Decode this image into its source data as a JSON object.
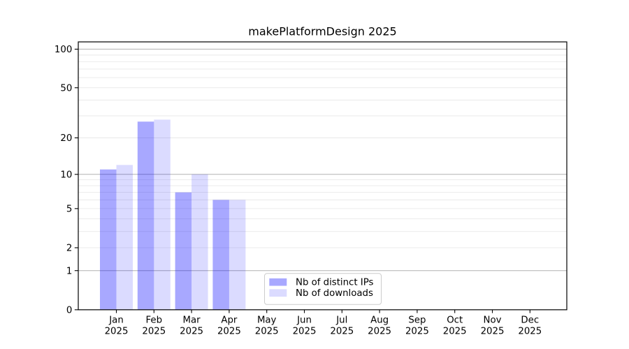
{
  "chart_data": {
    "type": "bar",
    "title": "makePlatformDesign 2025",
    "categories": [
      "Jan",
      "Feb",
      "Mar",
      "Apr",
      "May",
      "Jun",
      "Jul",
      "Aug",
      "Sep",
      "Oct",
      "Nov",
      "Dec"
    ],
    "category_year": "2025",
    "series": [
      {
        "name": "Nb of distinct IPs",
        "color": "rgba(0,0,255,0.34)",
        "color_hex": "#a9a9f9",
        "values": [
          11,
          27,
          7,
          6,
          0,
          0,
          0,
          0,
          0,
          0,
          0,
          0
        ]
      },
      {
        "name": "Nb of downloads",
        "color": "rgba(0,0,255,0.14)",
        "color_hex": "#dcdcfc",
        "values": [
          12,
          28,
          10,
          6,
          0,
          0,
          0,
          0,
          0,
          0,
          0,
          0
        ]
      }
    ],
    "yscale": "log1p",
    "ylim": [
      0,
      113
    ],
    "ytick_labels": [
      "0",
      "1",
      "2",
      "5",
      "10",
      "20",
      "50",
      "100"
    ],
    "ytick_values": [
      0,
      1,
      2,
      5,
      10,
      20,
      50,
      100
    ],
    "major_gridlines": [
      1,
      10,
      100
    ],
    "minor_gridlines": [
      2,
      3,
      4,
      5,
      6,
      7,
      8,
      9,
      20,
      30,
      40,
      50,
      60,
      70,
      80,
      90
    ],
    "legend": {
      "entries": [
        "Nb of distinct IPs",
        "Nb of downloads"
      ],
      "location": "lower center"
    },
    "colors": {
      "background": "#ffffff",
      "spine": "#000000",
      "major_grid": "#b2b2b2",
      "minor_grid": "#e9e9e9",
      "text": "#000000",
      "legend_border": "#cccccc",
      "legend_background": "#ffffff"
    },
    "grid": "on",
    "xlabel": "",
    "ylabel": ""
  }
}
